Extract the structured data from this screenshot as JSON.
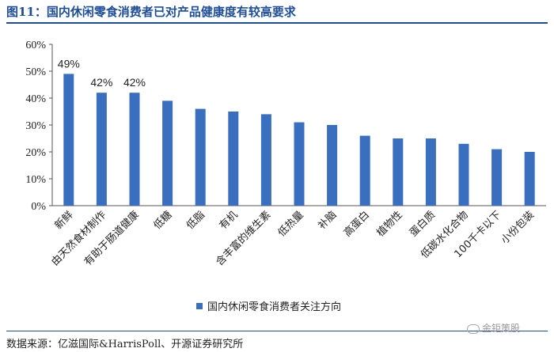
{
  "header": {
    "title": "图11：国内休闲零食消费者已对产品健康度有较高要求"
  },
  "footer": {
    "source": "数据来源：亿滋国际&HarrisPoll、开源证券研究所"
  },
  "watermark": {
    "text": "金钜策股"
  },
  "chart_data": {
    "type": "bar",
    "title": "",
    "xlabel": "",
    "ylabel": "",
    "ylim": [
      0,
      60
    ],
    "yticks": [
      0,
      10,
      20,
      30,
      40,
      50,
      60
    ],
    "ytick_labels": [
      "0%",
      "10%",
      "20%",
      "30%",
      "40%",
      "50%",
      "60%"
    ],
    "grid": false,
    "legend_position": "bottom",
    "categories": [
      "新鲜",
      "由天然食材制作",
      "有助于肠道健康",
      "低糖",
      "低脂",
      "有机",
      "含丰富的维生素",
      "低热量",
      "补脑",
      "高蛋白",
      "植物性",
      "蛋白质",
      "低碳水化合物",
      "100千卡以下",
      "小份包装"
    ],
    "series": [
      {
        "name": "国内休闲零食消费者关注方向",
        "color": "#3a6fbf",
        "values": [
          49,
          42,
          42,
          39,
          36,
          35,
          34,
          31,
          30,
          26,
          25,
          25,
          23,
          21,
          20
        ],
        "labels": [
          "49%",
          "42%",
          "42%",
          "",
          "",
          "",
          "",
          "",
          "",
          "",
          "",
          "",
          "",
          "",
          ""
        ]
      }
    ]
  }
}
